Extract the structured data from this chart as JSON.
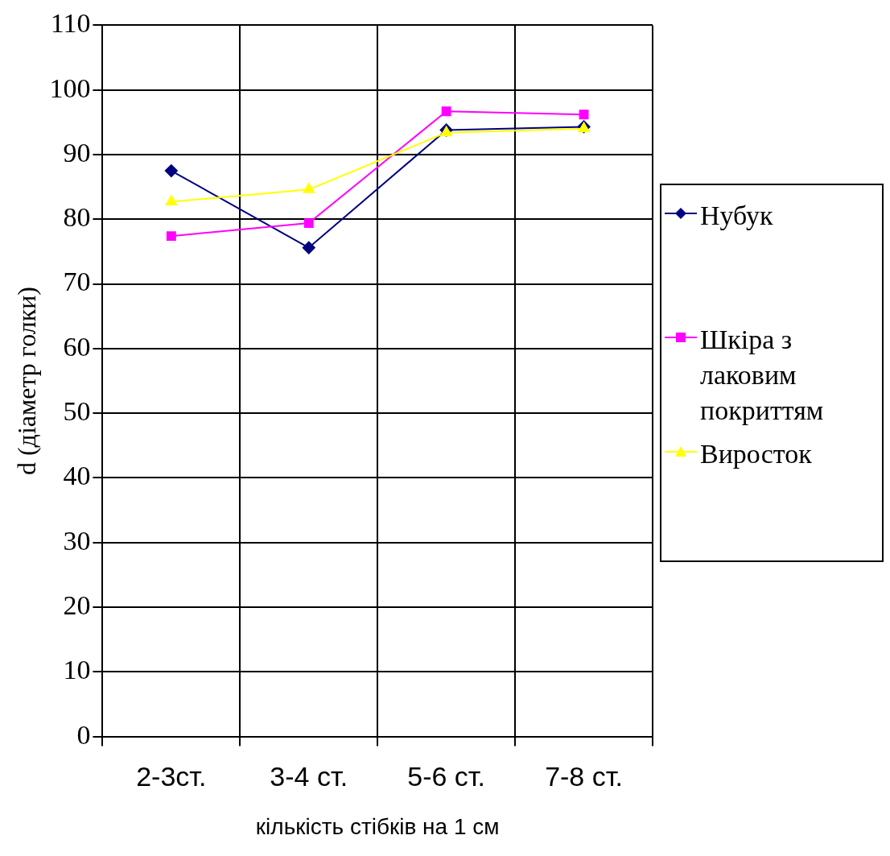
{
  "chart_data": {
    "type": "line",
    "xlabel": "кількість стібків на 1 см",
    "ylabel": "d (діаметр голки)",
    "categories": [
      "2-3ст.",
      "3-4 ст.",
      "5-6 ст.",
      "7-8 ст."
    ],
    "series": [
      {
        "name": "Нубук",
        "color": "#000080",
        "marker": "diamond",
        "values": [
          87.5,
          75.6,
          93.8,
          94.3
        ]
      },
      {
        "name": "Шкіра з лаковим покриттям",
        "color": "#ff00ff",
        "marker": "square",
        "values": [
          77.4,
          79.4,
          96.7,
          96.2
        ]
      },
      {
        "name": "Виросток",
        "color": "#ffff00",
        "marker": "triangle",
        "values": [
          82.7,
          84.6,
          93.4,
          94.0
        ]
      }
    ],
    "ylim": [
      0,
      110
    ],
    "yticks": [
      0,
      10,
      20,
      30,
      40,
      50,
      60,
      70,
      80,
      90,
      100,
      110
    ],
    "grid": true,
    "legend": "right",
    "line_style": "solid"
  }
}
